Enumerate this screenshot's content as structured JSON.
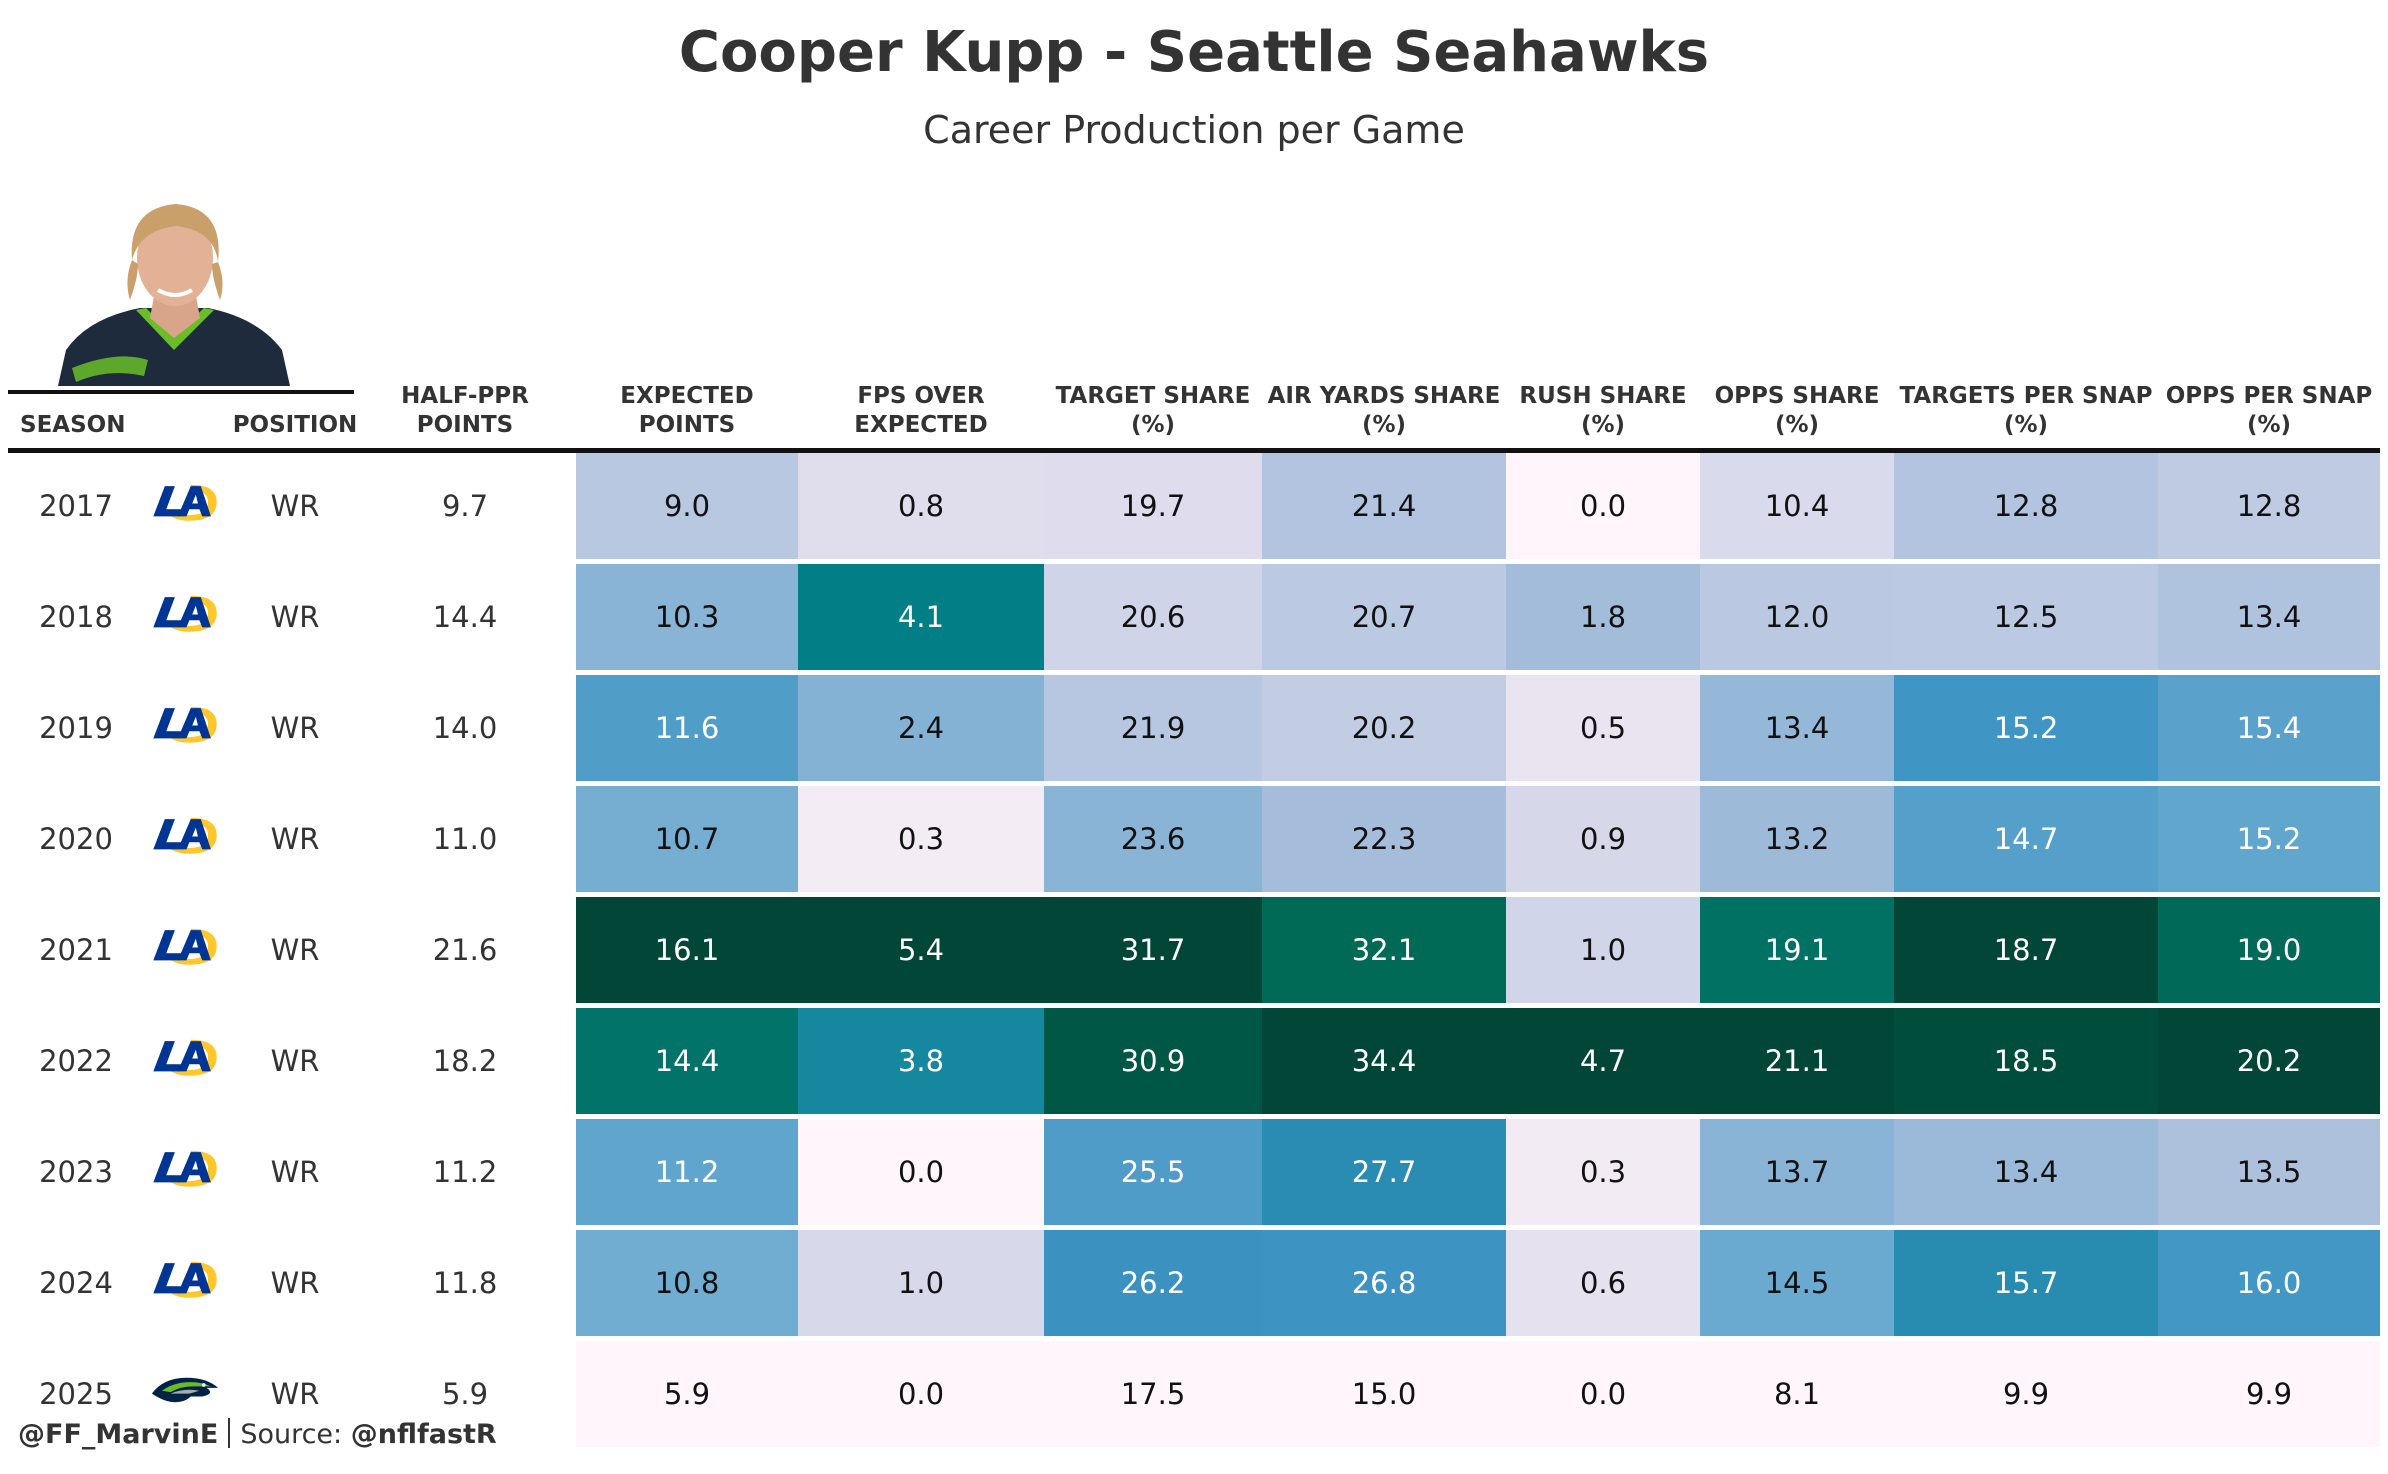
{
  "title": "Cooper Kupp - Seattle Seahawks",
  "subtitle": "Career Production per Game",
  "footer": {
    "handle": "@FF_MarvinE",
    "source_label": "Source:",
    "source": "@nflfastR"
  },
  "colors": {
    "pale": "#fff5fa",
    "mid_blue": "#3690c0",
    "teal": "#02818a",
    "dark_green": "#014636"
  },
  "chart_data": {
    "type": "table",
    "title": "Cooper Kupp - Seattle Seahawks",
    "subtitle": "Career Production per Game",
    "columns": [
      {
        "key": "season",
        "label": "SEASON"
      },
      {
        "key": "team_logo",
        "label": ""
      },
      {
        "key": "position",
        "label": "POSITION"
      },
      {
        "key": "half_ppr",
        "label": "HALF-PPR\nPOINTS"
      },
      {
        "key": "expected_points",
        "label": "EXPECTED\nPOINTS"
      },
      {
        "key": "fps_over_expected",
        "label": "FPS OVER\nEXPECTED"
      },
      {
        "key": "target_share",
        "label": "TARGET SHARE\n(%)"
      },
      {
        "key": "air_yards_share",
        "label": "AIR YARDS SHARE\n(%)"
      },
      {
        "key": "rush_share",
        "label": "RUSH SHARE\n(%)"
      },
      {
        "key": "opps_share",
        "label": "OPPS SHARE\n(%)"
      },
      {
        "key": "targets_per_snap",
        "label": "TARGETS PER SNAP\n(%)"
      },
      {
        "key": "opps_per_snap",
        "label": "OPPS PER SNAP\n(%)"
      }
    ],
    "heatmap_columns": [
      "expected_points",
      "fps_over_expected",
      "target_share",
      "air_yards_share",
      "rush_share",
      "opps_share",
      "targets_per_snap",
      "opps_per_snap"
    ],
    "rows": [
      {
        "season": "2017",
        "team": "rams",
        "position": "WR",
        "half_ppr": "9.7",
        "expected_points": "9.0",
        "fps_over_expected": "0.8",
        "target_share": "19.7",
        "air_yards_share": "21.4",
        "rush_share": "0.0",
        "opps_share": "10.4",
        "targets_per_snap": "12.8",
        "opps_per_snap": "12.8"
      },
      {
        "season": "2018",
        "team": "rams",
        "position": "WR",
        "half_ppr": "14.4",
        "expected_points": "10.3",
        "fps_over_expected": "4.1",
        "target_share": "20.6",
        "air_yards_share": "20.7",
        "rush_share": "1.8",
        "opps_share": "12.0",
        "targets_per_snap": "12.5",
        "opps_per_snap": "13.4"
      },
      {
        "season": "2019",
        "team": "rams",
        "position": "WR",
        "half_ppr": "14.0",
        "expected_points": "11.6",
        "fps_over_expected": "2.4",
        "target_share": "21.9",
        "air_yards_share": "20.2",
        "rush_share": "0.5",
        "opps_share": "13.4",
        "targets_per_snap": "15.2",
        "opps_per_snap": "15.4"
      },
      {
        "season": "2020",
        "team": "rams",
        "position": "WR",
        "half_ppr": "11.0",
        "expected_points": "10.7",
        "fps_over_expected": "0.3",
        "target_share": "23.6",
        "air_yards_share": "22.3",
        "rush_share": "0.9",
        "opps_share": "13.2",
        "targets_per_snap": "14.7",
        "opps_per_snap": "15.2"
      },
      {
        "season": "2021",
        "team": "rams",
        "position": "WR",
        "half_ppr": "21.6",
        "expected_points": "16.1",
        "fps_over_expected": "5.4",
        "target_share": "31.7",
        "air_yards_share": "32.1",
        "rush_share": "1.0",
        "opps_share": "19.1",
        "targets_per_snap": "18.7",
        "opps_per_snap": "19.0"
      },
      {
        "season": "2022",
        "team": "rams",
        "position": "WR",
        "half_ppr": "18.2",
        "expected_points": "14.4",
        "fps_over_expected": "3.8",
        "target_share": "30.9",
        "air_yards_share": "34.4",
        "rush_share": "4.7",
        "opps_share": "21.1",
        "targets_per_snap": "18.5",
        "opps_per_snap": "20.2"
      },
      {
        "season": "2023",
        "team": "rams",
        "position": "WR",
        "half_ppr": "11.2",
        "expected_points": "11.2",
        "fps_over_expected": "0.0",
        "target_share": "25.5",
        "air_yards_share": "27.7",
        "rush_share": "0.3",
        "opps_share": "13.7",
        "targets_per_snap": "13.4",
        "opps_per_snap": "13.5"
      },
      {
        "season": "2024",
        "team": "rams",
        "position": "WR",
        "half_ppr": "11.8",
        "expected_points": "10.8",
        "fps_over_expected": "1.0",
        "target_share": "26.2",
        "air_yards_share": "26.8",
        "rush_share": "0.6",
        "opps_share": "14.5",
        "targets_per_snap": "15.7",
        "opps_per_snap": "16.0"
      },
      {
        "season": "2025",
        "team": "seahawks",
        "position": "WR",
        "half_ppr": "5.9",
        "expected_points": "5.9",
        "fps_over_expected": "0.0",
        "target_share": "17.5",
        "air_yards_share": "15.0",
        "rush_share": "0.0",
        "opps_share": "8.1",
        "targets_per_snap": "9.9",
        "opps_per_snap": "9.9"
      }
    ]
  }
}
